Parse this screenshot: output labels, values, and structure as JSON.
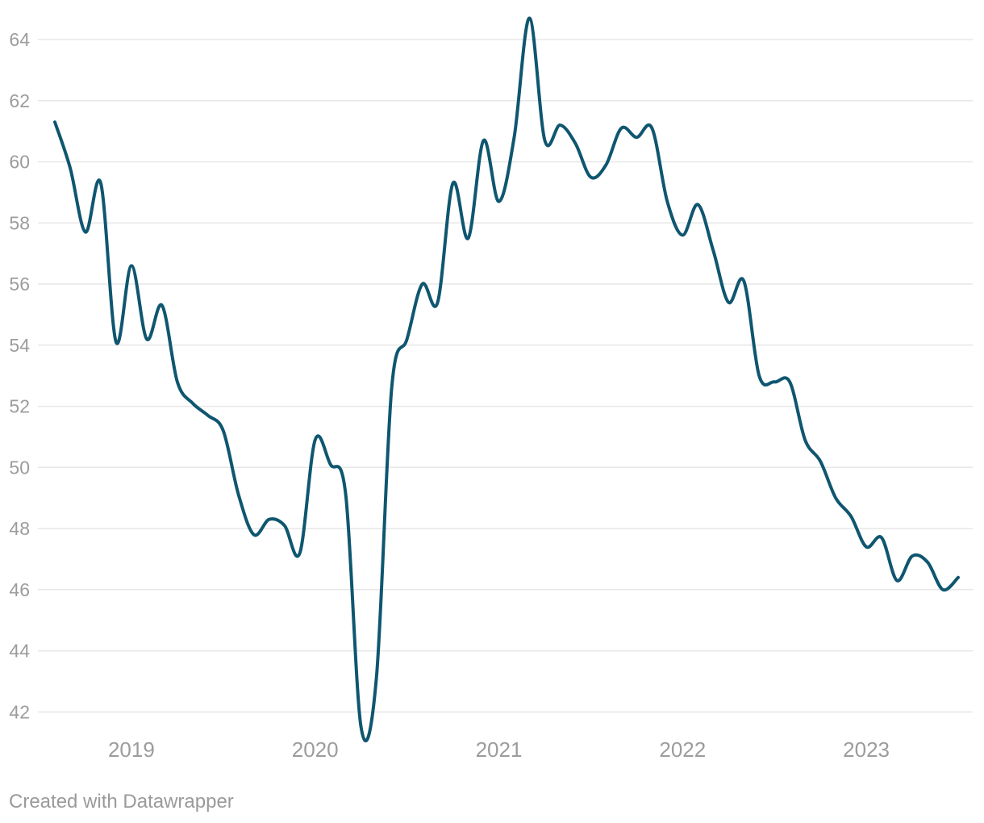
{
  "chart_data": {
    "type": "line",
    "title": "",
    "xlabel": "",
    "ylabel": "",
    "x": [
      "2018-08",
      "2018-09",
      "2018-10",
      "2018-11",
      "2018-12",
      "2019-01",
      "2019-02",
      "2019-03",
      "2019-04",
      "2019-05",
      "2019-06",
      "2019-07",
      "2019-08",
      "2019-09",
      "2019-10",
      "2019-11",
      "2019-12",
      "2020-01",
      "2020-02",
      "2020-03",
      "2020-04",
      "2020-05",
      "2020-06",
      "2020-07",
      "2020-08",
      "2020-09",
      "2020-10",
      "2020-11",
      "2020-12",
      "2021-01",
      "2021-02",
      "2021-03",
      "2021-04",
      "2021-05",
      "2021-06",
      "2021-07",
      "2021-08",
      "2021-09",
      "2021-10",
      "2021-11",
      "2021-12",
      "2022-01",
      "2022-02",
      "2022-03",
      "2022-04",
      "2022-05",
      "2022-06",
      "2022-07",
      "2022-08",
      "2022-09",
      "2022-10",
      "2022-11",
      "2022-12",
      "2023-01",
      "2023-02",
      "2023-03",
      "2023-04",
      "2023-05",
      "2023-06",
      "2023-07"
    ],
    "values": [
      61.3,
      59.8,
      57.7,
      59.3,
      54.1,
      56.6,
      54.2,
      55.3,
      52.8,
      52.1,
      51.7,
      51.2,
      49.1,
      47.8,
      48.3,
      48.1,
      47.2,
      50.9,
      50.1,
      49.1,
      41.5,
      43.1,
      52.6,
      54.2,
      56.0,
      55.4,
      59.3,
      57.5,
      60.7,
      58.7,
      60.8,
      64.7,
      60.7,
      61.2,
      60.6,
      59.5,
      59.9,
      61.1,
      60.8,
      61.1,
      58.7,
      57.6,
      58.6,
      57.1,
      55.4,
      56.1,
      53.0,
      52.8,
      52.8,
      50.9,
      50.2,
      49.0,
      48.4,
      47.4,
      47.7,
      46.3,
      47.1,
      46.9,
      46.0,
      46.4
    ],
    "y_ticks": [
      42,
      44,
      46,
      48,
      50,
      52,
      54,
      56,
      58,
      60,
      62,
      64
    ],
    "x_tick_labels": [
      "2019",
      "2020",
      "2021",
      "2022",
      "2023"
    ],
    "ylim": [
      42,
      64
    ],
    "grid": "horizontal",
    "curve": "smooth",
    "legend": "none",
    "line_color": "#0F5670",
    "gridline_color": "#E7E7E7",
    "axis_label_color": "#9C9C9C"
  },
  "footer": {
    "credit": "Created with Datawrapper"
  }
}
